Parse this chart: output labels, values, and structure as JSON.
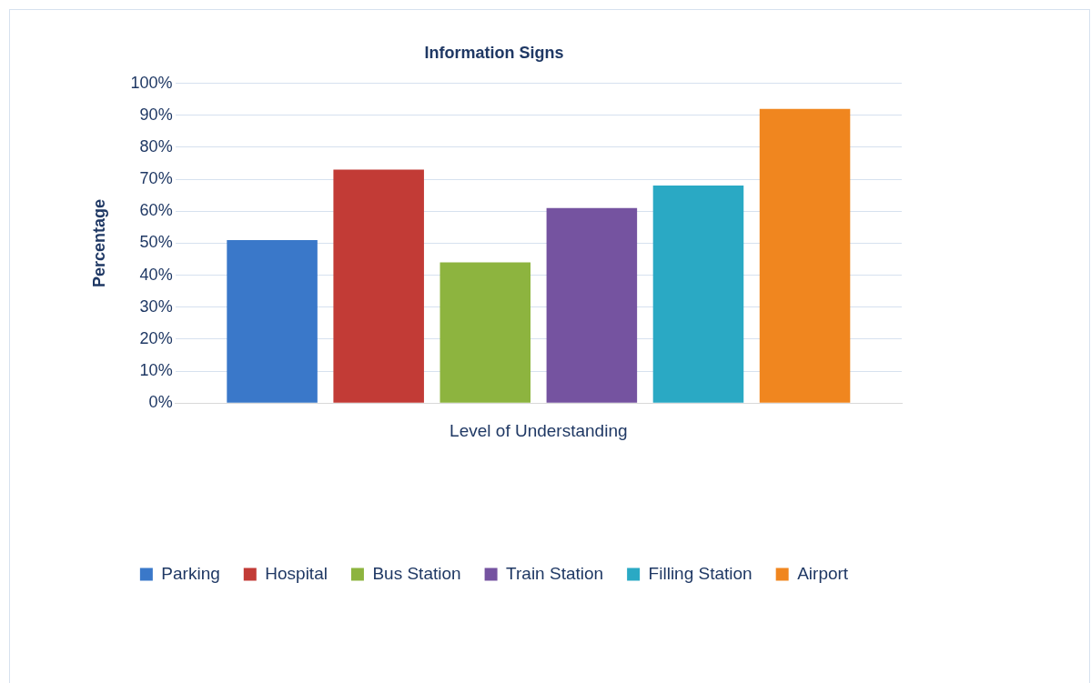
{
  "chart_data": {
    "type": "bar",
    "title": "Information Signs",
    "xlabel": "Level of Understanding",
    "ylabel": "Percentage",
    "categories": [
      null
    ],
    "series": [
      {
        "name": "Parking",
        "color": "#3a78c9",
        "values": [
          51
        ]
      },
      {
        "name": "Hospital",
        "color": "#c23b36",
        "values": [
          73
        ]
      },
      {
        "name": "Bus Station",
        "color": "#8db43f",
        "values": [
          44
        ]
      },
      {
        "name": "Train Station",
        "color": "#7553a0",
        "values": [
          61
        ]
      },
      {
        "name": "Filling Station",
        "color": "#2aa9c4",
        "values": [
          68
        ]
      },
      {
        "name": "Airport",
        "color": "#f0861f",
        "values": [
          92
        ]
      }
    ],
    "ylim": [
      0,
      100
    ],
    "yticks": [
      {
        "value": 0,
        "label": "0%"
      },
      {
        "value": 10,
        "label": "10%"
      },
      {
        "value": 20,
        "label": "20%"
      },
      {
        "value": 30,
        "label": "30%"
      },
      {
        "value": 40,
        "label": "40%"
      },
      {
        "value": 50,
        "label": "50%"
      },
      {
        "value": 60,
        "label": "60%"
      },
      {
        "value": 70,
        "label": "70%"
      },
      {
        "value": 80,
        "label": "80%"
      },
      {
        "value": 90,
        "label": "90%"
      },
      {
        "value": 100,
        "label": "100%"
      }
    ],
    "grid": "y",
    "legend": "bottom"
  }
}
